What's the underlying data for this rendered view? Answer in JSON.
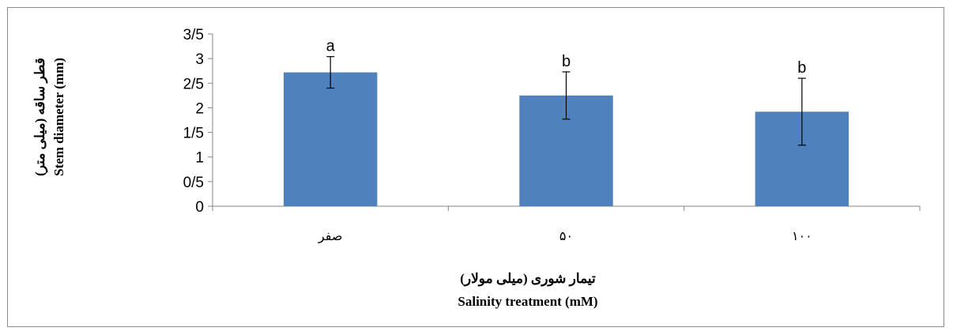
{
  "chart_data": {
    "type": "bar",
    "categories": [
      "صفر",
      "۵۰",
      "۱۰۰"
    ],
    "values": [
      2.72,
      2.25,
      1.92
    ],
    "errors": [
      0.32,
      0.48,
      0.68
    ],
    "significance_letters": [
      "a",
      "b",
      "b"
    ],
    "xlabel": [
      "تیمار شوری (میلی مولار)",
      "Salinity treatment (mM)"
    ],
    "ylabel": [
      "قطر ساقه (میلی متر)",
      "Stem diameter (mm)"
    ],
    "ylim": [
      0,
      3.5
    ],
    "yticks": [
      0,
      0.5,
      1,
      1.5,
      2,
      2.5,
      3,
      3.5
    ],
    "ytick_labels": [
      "0",
      "0/5",
      "1",
      "1/5",
      "2",
      "2/5",
      "3",
      "3/5"
    ],
    "grid": false,
    "legend": "none",
    "colors": {
      "bar": "#4f81bd",
      "axis": "#868686"
    }
  }
}
